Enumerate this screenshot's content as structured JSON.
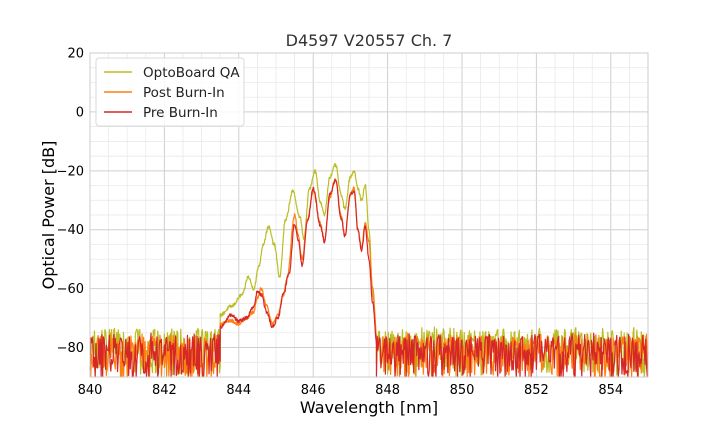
{
  "chart_data": {
    "type": "line",
    "title": "D4597 V20557 Ch. 7",
    "xlabel": "Wavelength [nm]",
    "ylabel": "Optical Power [dB]",
    "xlim": [
      840,
      855
    ],
    "ylim": [
      -90,
      20
    ],
    "xticks": [
      840,
      842,
      844,
      846,
      848,
      850,
      852,
      854
    ],
    "yticks": [
      20,
      0,
      -20,
      -40,
      -60,
      -80
    ],
    "xtick_labels": [
      "840",
      "842",
      "844",
      "846",
      "848",
      "850",
      "852",
      "854"
    ],
    "ytick_labels": [
      "20",
      "0",
      "−20",
      "−40",
      "−60",
      "−80"
    ],
    "grid": true,
    "legend_position": "top-left",
    "noise_floor": {
      "mean": -80,
      "spread": 7,
      "regions": [
        [
          840,
          843.5
        ],
        [
          847.7,
          855
        ]
      ]
    },
    "series": [
      {
        "name": "OptoBoard QA",
        "color": "#bcbd22",
        "points": [
          [
            840.0,
            -73
          ],
          [
            842.0,
            -73
          ],
          [
            843.0,
            -71
          ],
          [
            843.5,
            -69
          ],
          [
            843.8,
            -66
          ],
          [
            844.1,
            -62
          ],
          [
            844.25,
            -56
          ],
          [
            844.4,
            -60
          ],
          [
            844.55,
            -52
          ],
          [
            844.65,
            -45
          ],
          [
            844.8,
            -39
          ],
          [
            844.95,
            -45
          ],
          [
            845.1,
            -56
          ],
          [
            845.25,
            -37
          ],
          [
            845.45,
            -27
          ],
          [
            845.65,
            -36
          ],
          [
            845.75,
            -43
          ],
          [
            845.9,
            -26
          ],
          [
            846.05,
            -20
          ],
          [
            846.2,
            -31
          ],
          [
            846.3,
            -35
          ],
          [
            846.45,
            -22
          ],
          [
            846.6,
            -18
          ],
          [
            846.75,
            -28
          ],
          [
            846.85,
            -33
          ],
          [
            847.0,
            -22
          ],
          [
            847.1,
            -20
          ],
          [
            847.2,
            -26
          ],
          [
            847.3,
            -30
          ],
          [
            847.4,
            -25
          ],
          [
            847.5,
            -40
          ],
          [
            847.6,
            -62
          ],
          [
            847.7,
            -76
          ]
        ]
      },
      {
        "name": "Post Burn-In",
        "color": "#ff7f0e",
        "points": [
          [
            840.0,
            -75
          ],
          [
            842.0,
            -75
          ],
          [
            843.0,
            -73
          ],
          [
            843.5,
            -72
          ],
          [
            843.8,
            -71
          ],
          [
            844.0,
            -72
          ],
          [
            844.2,
            -70
          ],
          [
            844.4,
            -68
          ],
          [
            844.5,
            -63
          ],
          [
            844.6,
            -60
          ],
          [
            844.75,
            -66
          ],
          [
            844.9,
            -72
          ],
          [
            845.05,
            -69
          ],
          [
            845.2,
            -62
          ],
          [
            845.3,
            -56
          ],
          [
            845.5,
            -35
          ],
          [
            845.6,
            -42
          ],
          [
            845.7,
            -50
          ],
          [
            845.85,
            -36
          ],
          [
            846.0,
            -27
          ],
          [
            846.2,
            -38
          ],
          [
            846.3,
            -44
          ],
          [
            846.45,
            -29
          ],
          [
            846.6,
            -23
          ],
          [
            846.75,
            -35
          ],
          [
            846.85,
            -42
          ],
          [
            847.0,
            -28
          ],
          [
            847.1,
            -26
          ],
          [
            847.2,
            -40
          ],
          [
            847.3,
            -46
          ],
          [
            847.4,
            -38
          ],
          [
            847.5,
            -44
          ],
          [
            847.6,
            -60
          ],
          [
            847.72,
            -78
          ]
        ]
      },
      {
        "name": "Pre Burn-In",
        "color": "#d62728",
        "points": [
          [
            840.0,
            -76
          ],
          [
            842.0,
            -76
          ],
          [
            843.0,
            -74
          ],
          [
            843.5,
            -73
          ],
          [
            843.8,
            -69
          ],
          [
            844.0,
            -71
          ],
          [
            844.2,
            -70
          ],
          [
            844.4,
            -66
          ],
          [
            844.5,
            -61
          ],
          [
            844.6,
            -62
          ],
          [
            844.75,
            -68
          ],
          [
            844.9,
            -73
          ],
          [
            845.05,
            -70
          ],
          [
            845.2,
            -62
          ],
          [
            845.35,
            -55
          ],
          [
            845.5,
            -38
          ],
          [
            845.6,
            -44
          ],
          [
            845.7,
            -52
          ],
          [
            845.85,
            -37
          ],
          [
            846.0,
            -26
          ],
          [
            846.2,
            -39
          ],
          [
            846.3,
            -44
          ],
          [
            846.45,
            -28
          ],
          [
            846.6,
            -23
          ],
          [
            846.75,
            -36
          ],
          [
            846.85,
            -42
          ],
          [
            847.0,
            -28
          ],
          [
            847.1,
            -27
          ],
          [
            847.2,
            -40
          ],
          [
            847.3,
            -47
          ],
          [
            847.4,
            -39
          ],
          [
            847.5,
            -50
          ],
          [
            847.6,
            -65
          ],
          [
            847.72,
            -80
          ]
        ]
      }
    ]
  }
}
